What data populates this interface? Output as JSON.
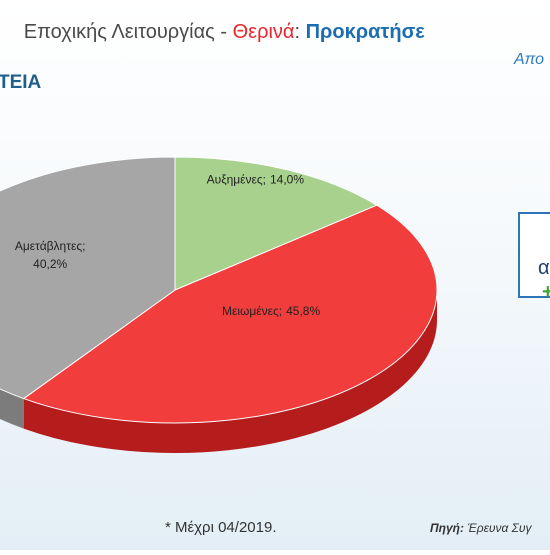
{
  "header": {
    "title_parts": [
      "Εποχικής Λειτουργίας - ",
      "Θερινά",
      ": ",
      "Προκρατήσε"
    ],
    "subtitle": "Απο",
    "section": "ΤΕΙΑ"
  },
  "chart_data": {
    "type": "pie3d",
    "categories": [
      "Αυξημένες;",
      "Μειωμένες;",
      "Αμετάβλητες;"
    ],
    "values": [
      14.0,
      45.8,
      40.2
    ],
    "value_labels": [
      "14,0%",
      "45,8%",
      "40,2%"
    ],
    "colors": [
      "#a9d18e",
      "#f23d3d",
      "#a6a6a6"
    ],
    "side_colors": [
      "#7fa866",
      "#b51c1c",
      "#7c7c7c"
    ]
  },
  "side_box": {
    "lines": [
      "α",
      "+"
    ]
  },
  "footer": {
    "note": "* Μέχρι 04/2019.",
    "source_label": "Πηγή:",
    "source": " Έρευνα Συγ"
  }
}
